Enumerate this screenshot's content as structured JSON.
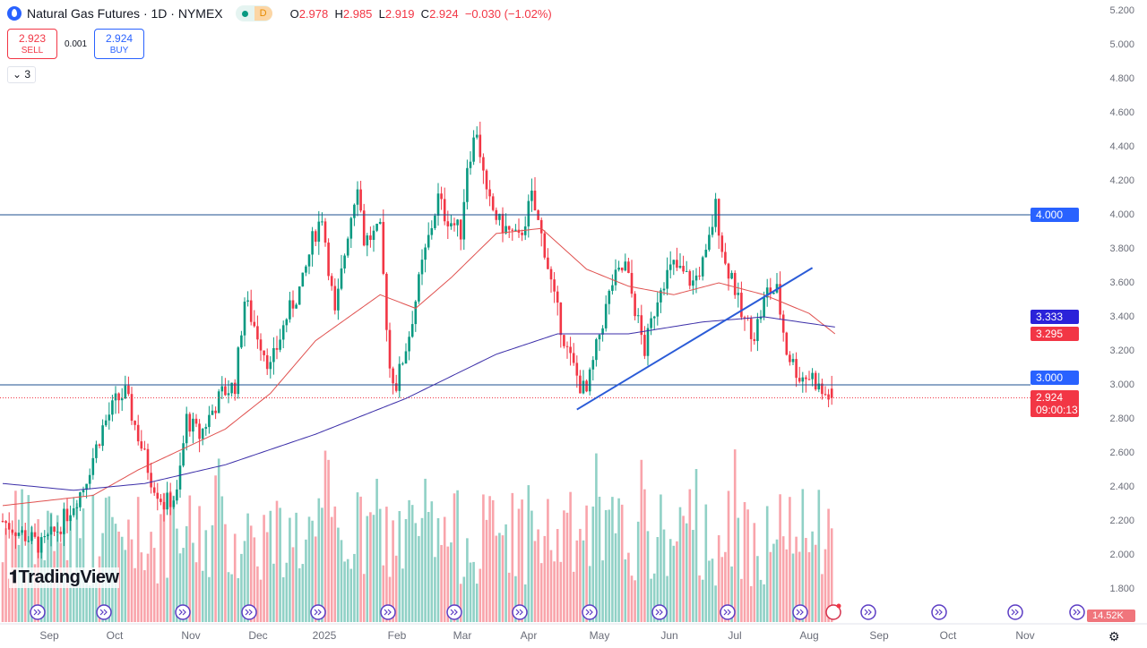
{
  "header": {
    "title": "Natural Gas Futures · 1D · NYMEX",
    "badge": "D",
    "open_label": "O",
    "open": "2.978",
    "high_label": "H",
    "high": "2.985",
    "low_label": "L",
    "low": "2.919",
    "close_label": "C",
    "close": "2.924",
    "change": "−0.030 (−1.02%)"
  },
  "trade": {
    "sell_price": "2.923",
    "sell_label": "SELL",
    "spread": "0.001",
    "buy_price": "2.924",
    "buy_label": "BUY"
  },
  "indicators_toggle": "3",
  "brand": "TradingView",
  "price_tags": {
    "level_4": "4.000",
    "ma_blue": "3.333",
    "ma_red": "3.295",
    "level_3": "3.000",
    "last_price": "2.924",
    "countdown": "09:00:13",
    "volume": "14.52K"
  },
  "colors": {
    "up": "#089981",
    "down": "#f23645",
    "ma_red": "#e0514f",
    "ma_blue": "#3b2ea8",
    "trend": "#2a5bd7",
    "hline": "#1e4f8f"
  },
  "chart_data": {
    "type": "candlestick",
    "title": "Natural Gas Futures · 1D · NYMEX",
    "ylim": [
      1.7,
      5.25
    ],
    "y_ticks": [
      "5.200",
      "5.000",
      "4.800",
      "4.600",
      "4.400",
      "4.200",
      "4.000",
      "3.800",
      "3.600",
      "3.400",
      "3.200",
      "3.000",
      "2.800",
      "2.600",
      "2.400",
      "2.200",
      "2.000",
      "1.800"
    ],
    "x_ticks": [
      "Sep",
      "Oct",
      "Nov",
      "Dec",
      "2025",
      "Feb",
      "Mar",
      "Apr",
      "May",
      "Jun",
      "Jul",
      "Aug",
      "Sep",
      "Oct",
      "Nov"
    ],
    "close_path": [
      [
        0,
        2.2
      ],
      [
        12,
        2.05
      ],
      [
        17,
        2.15
      ],
      [
        25,
        2.4
      ],
      [
        31,
        2.75
      ],
      [
        35,
        2.9
      ],
      [
        38,
        2.95
      ],
      [
        42,
        2.7
      ],
      [
        46,
        2.45
      ],
      [
        50,
        2.3
      ],
      [
        54,
        2.35
      ],
      [
        57,
        2.8
      ],
      [
        61,
        2.7
      ],
      [
        65,
        2.85
      ],
      [
        68,
        2.95
      ],
      [
        72,
        3.0
      ],
      [
        75,
        3.5
      ],
      [
        79,
        3.3
      ],
      [
        83,
        3.1
      ],
      [
        88,
        3.4
      ],
      [
        93,
        3.6
      ],
      [
        96,
        3.85
      ],
      [
        99,
        4.0
      ],
      [
        103,
        3.4
      ],
      [
        107,
        3.9
      ],
      [
        110,
        4.2
      ],
      [
        112,
        3.85
      ],
      [
        117,
        3.9
      ],
      [
        120,
        3.1
      ],
      [
        122,
        3.0
      ],
      [
        126,
        3.3
      ],
      [
        130,
        3.7
      ],
      [
        135,
        4.1
      ],
      [
        137,
        4.0
      ],
      [
        142,
        3.9
      ],
      [
        144,
        4.3
      ],
      [
        147,
        4.5
      ],
      [
        150,
        4.1
      ],
      [
        154,
        3.95
      ],
      [
        160,
        3.85
      ],
      [
        164,
        4.1
      ],
      [
        168,
        3.8
      ],
      [
        171,
        3.5
      ],
      [
        175,
        3.2
      ],
      [
        179,
        3.0
      ],
      [
        181,
        2.95
      ],
      [
        185,
        3.3
      ],
      [
        189,
        3.6
      ],
      [
        193,
        3.7
      ],
      [
        199,
        3.2
      ],
      [
        204,
        3.6
      ],
      [
        208,
        3.7
      ],
      [
        214,
        3.6
      ],
      [
        218,
        3.75
      ],
      [
        221,
        4.05
      ],
      [
        224,
        3.7
      ],
      [
        226,
        3.65
      ],
      [
        229,
        3.4
      ],
      [
        233,
        3.3
      ],
      [
        237,
        3.55
      ],
      [
        240,
        3.55
      ],
      [
        243,
        3.2
      ],
      [
        247,
        3.05
      ],
      [
        251,
        3.05
      ],
      [
        254,
        2.95
      ],
      [
        257,
        2.924
      ]
    ],
    "ma50_path": [
      [
        0,
        2.29
      ],
      [
        28,
        2.35
      ],
      [
        42,
        2.5
      ],
      [
        69,
        2.74
      ],
      [
        83,
        2.95
      ],
      [
        97,
        3.26
      ],
      [
        117,
        3.53
      ],
      [
        128,
        3.45
      ],
      [
        139,
        3.63
      ],
      [
        153,
        3.89
      ],
      [
        167,
        3.92
      ],
      [
        181,
        3.68
      ],
      [
        194,
        3.58
      ],
      [
        208,
        3.53
      ],
      [
        222,
        3.6
      ],
      [
        236,
        3.53
      ],
      [
        250,
        3.42
      ],
      [
        258,
        3.3
      ]
    ],
    "ma200_path": [
      [
        0,
        2.42
      ],
      [
        22,
        2.38
      ],
      [
        44,
        2.42
      ],
      [
        69,
        2.53
      ],
      [
        97,
        2.71
      ],
      [
        125,
        2.92
      ],
      [
        153,
        3.18
      ],
      [
        172,
        3.3
      ],
      [
        194,
        3.3
      ],
      [
        217,
        3.37
      ],
      [
        236,
        3.4
      ],
      [
        258,
        3.34
      ]
    ],
    "trendline": [
      [
        178,
        2.855
      ],
      [
        251,
        3.688
      ]
    ],
    "horizontal_levels": [
      4.0,
      3.0
    ],
    "last_price": 2.924
  }
}
